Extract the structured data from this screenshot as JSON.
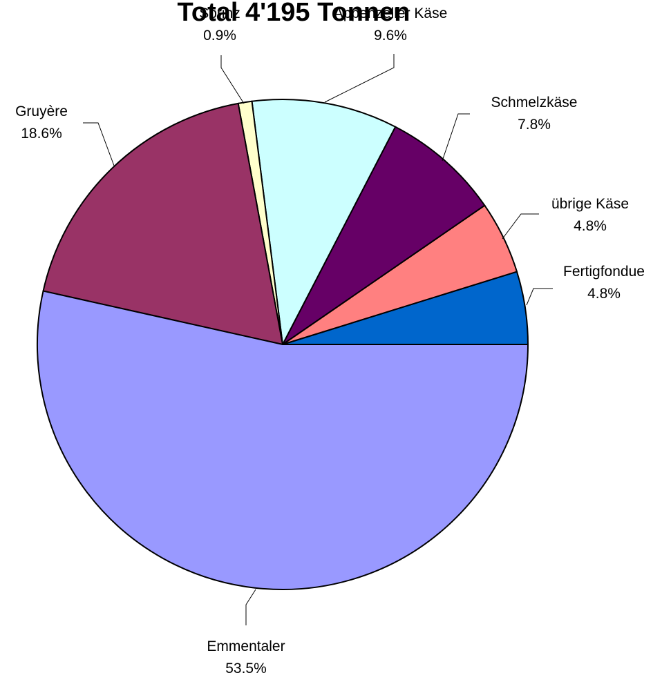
{
  "chart_data": {
    "type": "pie",
    "title": "Total 4'195 Tonnen",
    "unit": "%",
    "slices": [
      {
        "name": "Fertigfondue",
        "value": 4.8,
        "label": "4.8%",
        "color": "#0066CC"
      },
      {
        "name": "übrige Käse",
        "value": 4.8,
        "label": "4.8%",
        "color": "#FF8080"
      },
      {
        "name": "Schmelzkäse",
        "value": 7.8,
        "label": "7.8%",
        "color": "#660066"
      },
      {
        "name": "Appenzeller Käse",
        "value": 9.6,
        "label": "9.6%",
        "color": "#CCFFFF"
      },
      {
        "name": "Sbrinz",
        "value": 0.9,
        "label": "0.9%",
        "color": "#FFFFCC"
      },
      {
        "name": "Gruyère",
        "value": 18.6,
        "label": "18.6%",
        "color": "#993366"
      },
      {
        "name": "Emmentaler",
        "value": 53.5,
        "label": "53.5%",
        "color": "#9999FF"
      }
    ],
    "start_angle": "east",
    "direction": "counterclockwise",
    "legend": "none"
  }
}
